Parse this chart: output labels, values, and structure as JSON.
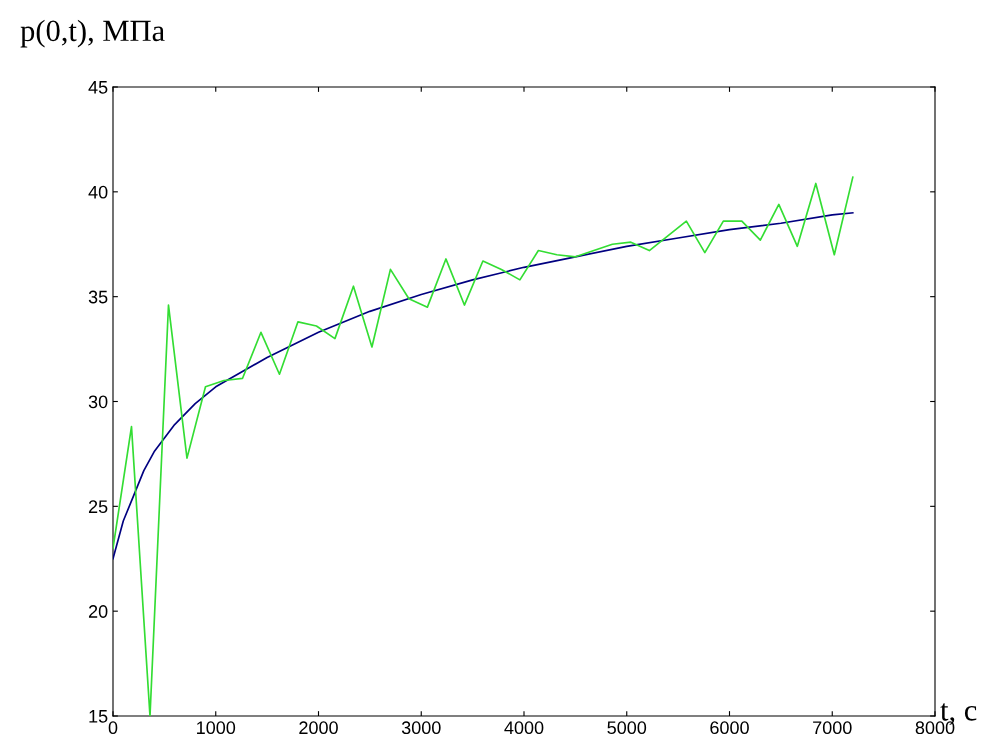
{
  "chart_data": {
    "type": "line",
    "xlabel": "t, с",
    "ylabel": "p(0,t), МПа",
    "xlim": [
      0,
      8000
    ],
    "ylim": [
      15,
      45
    ],
    "xticks": [
      0,
      1000,
      2000,
      3000,
      4000,
      5000,
      6000,
      7000,
      8000
    ],
    "yticks": [
      15,
      20,
      25,
      30,
      35,
      40,
      45
    ],
    "grid": false,
    "legend": false,
    "marker": "none",
    "line_style": "solid",
    "series": [
      {
        "color": "#33dd33",
        "x": [
          0,
          180,
          360,
          540,
          720,
          900,
          1080,
          1260,
          1440,
          1620,
          1800,
          1980,
          2160,
          2340,
          2520,
          2700,
          2880,
          3060,
          3240,
          3420,
          3600,
          3780,
          3960,
          4140,
          4320,
          4500,
          4680,
          4860,
          5040,
          5220,
          5400,
          5580,
          5760,
          5940,
          6120,
          6300,
          6480,
          6660,
          6840,
          7020,
          7200
        ],
        "values": [
          23,
          28.8,
          15,
          34.6,
          27.3,
          30.7,
          31,
          31.1,
          33.3,
          31.3,
          33.8,
          33.6,
          33,
          35.5,
          32.6,
          36.3,
          34.9,
          34.5,
          36.8,
          34.6,
          36.7,
          36.3,
          35.8,
          37.2,
          37,
          36.9,
          37.2,
          37.5,
          37.6,
          37.2,
          37.9,
          38.6,
          37.1,
          38.6,
          38.6,
          37.7,
          39.4,
          37.4,
          40.4,
          37,
          40.7
        ]
      },
      {
        "color": "#000080",
        "x": [
          0,
          100,
          200,
          300,
          400,
          600,
          800,
          1000,
          1500,
          2000,
          2500,
          3000,
          3500,
          4000,
          4500,
          5000,
          5500,
          6000,
          6500,
          7000,
          7200
        ],
        "values": [
          22.5,
          24.3,
          25.5,
          26.7,
          27.6,
          28.9,
          29.9,
          30.7,
          32.1,
          33.3,
          34.3,
          35.1,
          35.8,
          36.4,
          36.9,
          37.4,
          37.8,
          38.2,
          38.5,
          38.9,
          39.0
        ]
      }
    ]
  }
}
